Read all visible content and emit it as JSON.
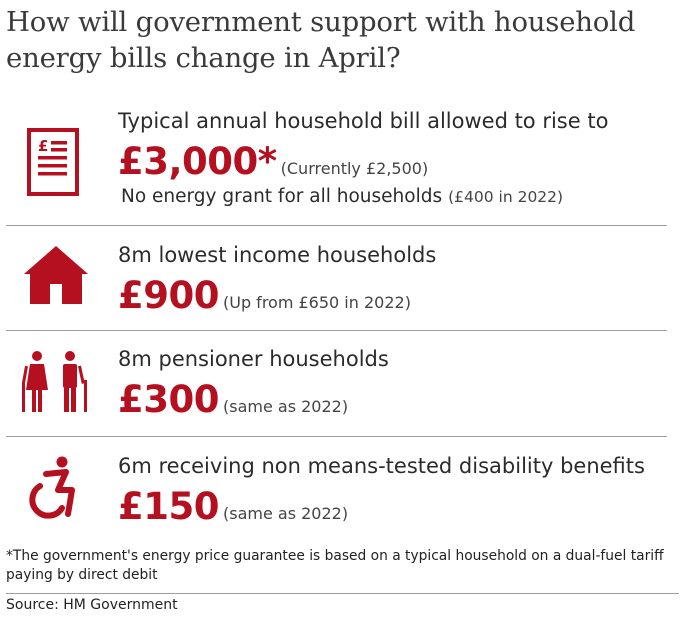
{
  "title": "How will government support with household energy bills change in April?",
  "brand_color": "#b5101f",
  "rows": [
    {
      "icon": "bill-document-icon",
      "line1": "Typical annual household bill allowed to rise to",
      "amount": "£3,000*",
      "note": "(Currently £2,500)",
      "line3": "No energy grant for all households",
      "line3_note": "(£400 in 2022)"
    },
    {
      "icon": "house-icon",
      "line1": "8m lowest income households",
      "amount": "£900",
      "note": "(Up from £650 in 2022)"
    },
    {
      "icon": "pensioners-icon",
      "line1": "8m pensioner households",
      "amount": "£300",
      "note": "(same as 2022)"
    },
    {
      "icon": "wheelchair-icon",
      "line1": "6m receiving non means-tested disability benefits",
      "amount": "£150",
      "note": "(same as 2022)"
    }
  ],
  "footnote": "*The government's energy price guarantee is based on a typical household on a dual-fuel tariff paying by direct debit",
  "source": "Source: HM Government"
}
